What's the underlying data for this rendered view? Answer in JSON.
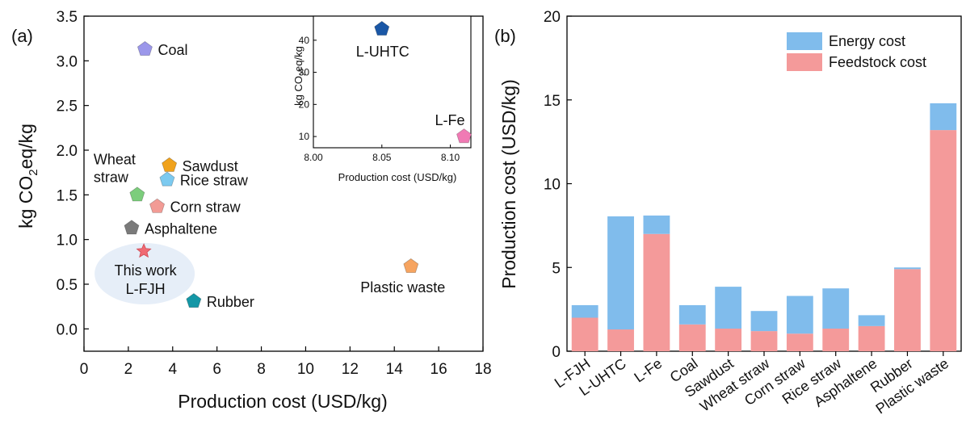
{
  "colors": {
    "energy": "#80bcec",
    "feedstock": "#f49a9a",
    "highlight": "#e6eef8"
  },
  "chart_data": [
    {
      "type": "scatter",
      "panel_label": "(a)",
      "xlabel": "Production cost (USD/kg)",
      "ylabel_parts": [
        "kg CO",
        "2",
        "eq/kg"
      ],
      "xlim": [
        0,
        18
      ],
      "ylim": [
        -0.25,
        3.5
      ],
      "xticks": [
        0,
        2,
        4,
        6,
        8,
        10,
        12,
        14,
        16,
        18
      ],
      "yticks": [
        0.0,
        0.5,
        1.0,
        1.5,
        2.0,
        2.5,
        3.0,
        3.5
      ],
      "points": [
        {
          "name": "Coal",
          "x": 2.75,
          "y": 3.13,
          "color": "#9b97ea",
          "marker": "pentagon",
          "label_side": "right"
        },
        {
          "name": "Sawdust",
          "x": 3.85,
          "y": 1.83,
          "color": "#f0a21c",
          "marker": "pentagon",
          "label_side": "right"
        },
        {
          "name": "Rice straw",
          "x": 3.75,
          "y": 1.67,
          "color": "#7ccaf0",
          "marker": "pentagon",
          "label_side": "right"
        },
        {
          "name": "Wheat straw",
          "x": 2.4,
          "y": 1.5,
          "color": "#7ccd7c",
          "marker": "pentagon",
          "label_side": "left-multiline",
          "label_lines": [
            "Wheat",
            "straw"
          ]
        },
        {
          "name": "Corn straw",
          "x": 3.3,
          "y": 1.37,
          "color": "#f29b95",
          "marker": "pentagon",
          "label_side": "right"
        },
        {
          "name": "Asphaltene",
          "x": 2.15,
          "y": 1.13,
          "color": "#7a7a7a",
          "marker": "pentagon",
          "label_side": "right"
        },
        {
          "name": "This work L-FJH",
          "x": 2.7,
          "y": 0.87,
          "color": "#f06a73",
          "marker": "star",
          "label_side": "below-highlight",
          "label_lines": [
            "This work",
            "L-FJH"
          ]
        },
        {
          "name": "Rubber",
          "x": 4.95,
          "y": 0.31,
          "color": "#1497a6",
          "marker": "pentagon",
          "label_side": "right"
        },
        {
          "name": "Plastic waste",
          "x": 14.75,
          "y": 0.7,
          "color": "#f6a460",
          "marker": "pentagon",
          "label_side": "below"
        }
      ],
      "inset": {
        "xlabel": "Production cost (USD/kg)",
        "ylabel_parts": [
          "kg CO",
          "2",
          "eq/kg"
        ],
        "xlim": [
          8.0,
          8.115
        ],
        "ylim": [
          6.5,
          47.5
        ],
        "xticks": [
          "8.00",
          "8.05",
          "8.10"
        ],
        "xtick_values": [
          8.0,
          8.05,
          8.1
        ],
        "yticks": [
          10,
          20,
          30,
          40
        ],
        "points": [
          {
            "name": "L-UHTC",
            "x": 8.05,
            "y": 43.5,
            "color": "#1a57a6",
            "marker": "pentagon",
            "label_side": "below"
          },
          {
            "name": "L-Fe",
            "x": 8.11,
            "y": 10,
            "color": "#f07ab4",
            "marker": "pentagon",
            "label_side": "above-left"
          }
        ]
      }
    },
    {
      "type": "stacked_bar",
      "panel_label": "(b)",
      "ylabel": "Production cost (USD/kg)",
      "ylim": [
        0,
        20
      ],
      "yticks": [
        0,
        5,
        10,
        15,
        20
      ],
      "categories": [
        "L-FJH",
        "L-UHTC",
        "L-Fe",
        "Coal",
        "Sawdust",
        "Wheat straw",
        "Corn straw",
        "Rice straw",
        "Asphaltene",
        "Rubber",
        "Plastic waste"
      ],
      "series": [
        {
          "name": "Feedstock cost",
          "values": [
            2.0,
            1.3,
            7.0,
            1.6,
            1.35,
            1.2,
            1.05,
            1.35,
            1.5,
            4.9,
            13.2
          ]
        },
        {
          "name": "Energy cost",
          "values": [
            0.75,
            6.75,
            1.1,
            1.15,
            2.5,
            1.2,
            2.25,
            2.4,
            0.65,
            0.1,
            1.6
          ]
        }
      ],
      "legend": [
        "Energy cost",
        "Feedstock cost"
      ],
      "legend_position": "top-right"
    }
  ]
}
